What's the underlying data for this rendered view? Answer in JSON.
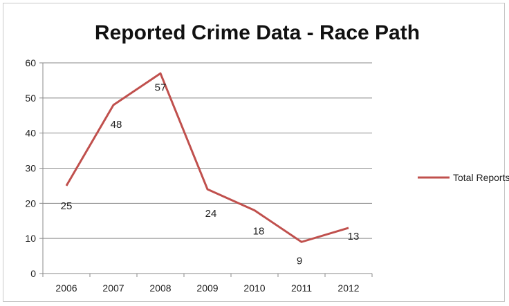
{
  "chart_data": {
    "type": "line",
    "title": "Reported Crime Data - Race Path",
    "xlabel": "",
    "ylabel": "",
    "categories": [
      "2006",
      "2007",
      "2008",
      "2009",
      "2010",
      "2011",
      "2012"
    ],
    "series": [
      {
        "name": "Total Reports",
        "values": [
          25,
          48,
          57,
          24,
          18,
          9,
          13
        ],
        "color": "#c0504d"
      }
    ],
    "ylim": [
      0,
      60
    ],
    "yticks": [
      0,
      10,
      20,
      30,
      40,
      50,
      60
    ],
    "grid": true,
    "legend": "right"
  }
}
